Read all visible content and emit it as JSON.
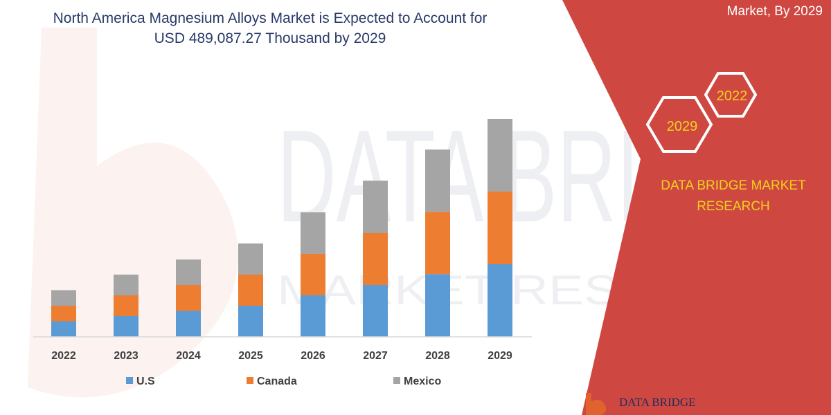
{
  "title": "North America Magnesium Alloys Market is Expected to Account for USD 489,087.27 Thousand  by 2029",
  "panel": {
    "caption": "Market, By 2029",
    "hex_labels": [
      "2022",
      "2029"
    ],
    "brand_text": "DATA BRIDGE MARKET RESEARCH",
    "footer_logo_text": "DATA BRIDGE"
  },
  "watermark": {
    "line1": "DATA BRIDGE",
    "line2": "MARKET RESEARCH"
  },
  "colors": {
    "us": "#5b9bd5",
    "canada": "#ed7d31",
    "mexico": "#a5a5a5",
    "panel": "#cf4741",
    "hex_outline": "#ffffff",
    "hex_text": "#f2d21c",
    "title": "#2a3a6a"
  },
  "chart_data": {
    "type": "bar",
    "stacked": true,
    "categories": [
      "2022",
      "2023",
      "2024",
      "2025",
      "2026",
      "2027",
      "2028",
      "2029"
    ],
    "series": [
      {
        "name": "U.S",
        "values": [
          3.0,
          4.0,
          5.0,
          6.0,
          8.0,
          10.0,
          12.1,
          14.0
        ]
      },
      {
        "name": "Canada",
        "values": [
          3.0,
          4.0,
          5.0,
          6.0,
          8.0,
          10.0,
          12.0,
          14.0
        ]
      },
      {
        "name": "Mexico",
        "values": [
          3.0,
          4.0,
          4.9,
          6.0,
          8.0,
          10.1,
          12.0,
          14.0
        ]
      }
    ],
    "ylim": [
      0,
      45
    ],
    "xlabel": "",
    "ylabel": "",
    "legend": "bottom",
    "grid": false
  }
}
